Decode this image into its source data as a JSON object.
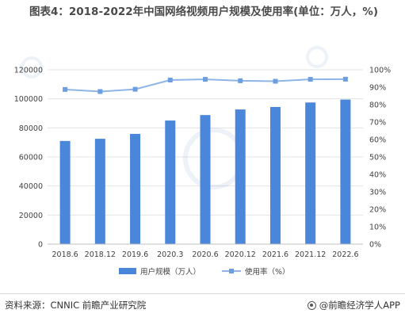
{
  "title": "图表4：2018-2022年中国网络视频用户规模及使用率(单位：万人，%)",
  "source": "资料来源：CNNIC 前瞻产业研究院",
  "brand": "@前瞻经济学人APP",
  "colors": {
    "bar": "#4a86d9",
    "line": "#8fb4e6",
    "marker": "#6d9fe0",
    "grid": "#e3e3e3",
    "axis_text": "#404040"
  },
  "chart_data": {
    "type": "bar",
    "categories": [
      "2018.6",
      "2018.12",
      "2019.6",
      "2020.3",
      "2020.6",
      "2020.12",
      "2021.6",
      "2021.12",
      "2022.6"
    ],
    "series": [
      {
        "name": "用户规模（万人）",
        "type": "bar",
        "axis": "left",
        "values": [
          71000,
          72486,
          75877,
          85044,
          88821,
          92677,
          94384,
          97471,
          99488
        ]
      },
      {
        "name": "使用率（%）",
        "type": "line",
        "axis": "right",
        "values": [
          88.7,
          87.5,
          88.8,
          94.1,
          94.5,
          93.7,
          93.4,
          94.5,
          94.6
        ]
      }
    ],
    "ylim_left": [
      0,
      120000
    ],
    "yticks_left": [
      "0",
      "20000",
      "40000",
      "60000",
      "80000",
      "100000",
      "120000"
    ],
    "ylim_right": [
      0,
      100
    ],
    "yticks_right": [
      "0%",
      "10%",
      "20%",
      "30%",
      "40%",
      "50%",
      "60%",
      "70%",
      "80%",
      "90%",
      "100%"
    ],
    "grid": true,
    "legend_position": "bottom-center"
  }
}
